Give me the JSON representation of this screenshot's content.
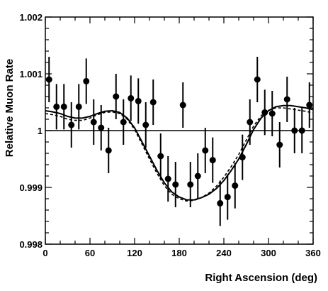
{
  "chart_data": {
    "type": "scatter",
    "title": "",
    "xlabel": "Right Ascension (deg)",
    "ylabel": "Relative Muon Rate",
    "xlim": [
      0,
      360
    ],
    "ylim": [
      0.998,
      1.002
    ],
    "x_ticks": [
      0,
      60,
      120,
      180,
      240,
      300,
      360
    ],
    "x_tick_labels": [
      "0",
      "60",
      "120",
      "180",
      "240",
      "300",
      "360"
    ],
    "y_ticks": [
      0.998,
      0.999,
      1.0,
      1.001,
      1.002
    ],
    "y_tick_labels": [
      "0.998",
      "0.999",
      "1",
      "1.001",
      "1.002"
    ],
    "reference_line": 1.0,
    "grid": false,
    "series": [
      {
        "kind": "points_with_error_bars",
        "x": [
          5,
          15,
          25,
          35,
          45,
          55,
          65,
          75,
          85,
          95,
          105,
          115,
          125,
          135,
          145,
          155,
          165,
          175,
          185,
          195,
          205,
          215,
          225,
          235,
          245,
          255,
          265,
          275,
          285,
          295,
          305,
          315,
          325,
          335,
          345,
          355
        ],
        "y": [
          1.0009,
          1.00042,
          1.00042,
          1.0001,
          1.00042,
          1.00087,
          1.00015,
          1.00005,
          0.99965,
          1.0006,
          1.00015,
          1.00057,
          1.00052,
          1.0001,
          1.0005,
          0.99955,
          0.99915,
          0.99905,
          1.00045,
          0.99905,
          0.9992,
          0.99965,
          0.99948,
          0.99872,
          0.99883,
          0.99903,
          0.99953,
          1.00015,
          1.0009,
          1.00032,
          1.0003,
          0.99975,
          1.00055,
          1.0,
          1.0,
          1.00045
        ],
        "yerr": [
          0.0004,
          0.0004,
          0.0004,
          0.0004,
          0.0004,
          0.0004,
          0.0004,
          0.0004,
          0.0004,
          0.0004,
          0.0004,
          0.0004,
          0.0004,
          0.0004,
          0.0004,
          0.0004,
          0.0004,
          0.0004,
          0.0004,
          0.0004,
          0.0004,
          0.0004,
          0.0004,
          0.0004,
          0.0004,
          0.0004,
          0.0004,
          0.0004,
          0.0004,
          0.0004,
          0.0004,
          0.0004,
          0.0004,
          0.0004,
          0.0004,
          0.0004
        ]
      },
      {
        "kind": "fit_curve",
        "style": "solid",
        "x": [
          0,
          10,
          20,
          30,
          40,
          50,
          60,
          70,
          80,
          90,
          100,
          110,
          120,
          130,
          140,
          150,
          160,
          170,
          180,
          190,
          200,
          210,
          220,
          230,
          240,
          250,
          260,
          270,
          280,
          290,
          300,
          310,
          320,
          330,
          340,
          350,
          360
        ],
        "y": [
          1.00035,
          1.00033,
          1.0003,
          1.00025,
          1.00022,
          1.00022,
          1.00025,
          1.0003,
          1.00034,
          1.00035,
          1.00032,
          1.00022,
          1.00005,
          0.9998,
          0.99955,
          0.9993,
          0.99908,
          0.99892,
          0.99883,
          0.99878,
          0.99878,
          0.99882,
          0.99888,
          0.99898,
          0.99912,
          0.9993,
          0.9995,
          0.99975,
          1.00002,
          1.00022,
          1.00035,
          1.00042,
          1.00044,
          1.00044,
          1.00042,
          1.0004,
          1.00037
        ]
      },
      {
        "kind": "fit_curve",
        "style": "dashed",
        "x": [
          0,
          10,
          20,
          30,
          40,
          50,
          60,
          70,
          80,
          90,
          100,
          110,
          120,
          130,
          140,
          150,
          160,
          170,
          180,
          190,
          200,
          210,
          220,
          230,
          240,
          250,
          260,
          270,
          280,
          290,
          300,
          310,
          320,
          330,
          340,
          350,
          360
        ],
        "y": [
          1.0003,
          1.00028,
          1.00025,
          1.0002,
          1.00018,
          1.00018,
          1.00022,
          1.00028,
          1.00032,
          1.00033,
          1.0003,
          1.0002,
          1.00002,
          0.99976,
          0.9995,
          0.99925,
          0.99903,
          0.99888,
          0.9988,
          0.99876,
          0.99877,
          0.99882,
          0.9989,
          0.99902,
          0.99918,
          0.99937,
          0.99958,
          0.99983,
          1.00008,
          1.00026,
          1.00036,
          1.0004,
          1.0004,
          1.00038,
          1.00036,
          1.00034,
          1.00031
        ]
      }
    ],
    "colors": {
      "marker": "#000000",
      "line": "#000000",
      "background": "#ffffff"
    }
  }
}
